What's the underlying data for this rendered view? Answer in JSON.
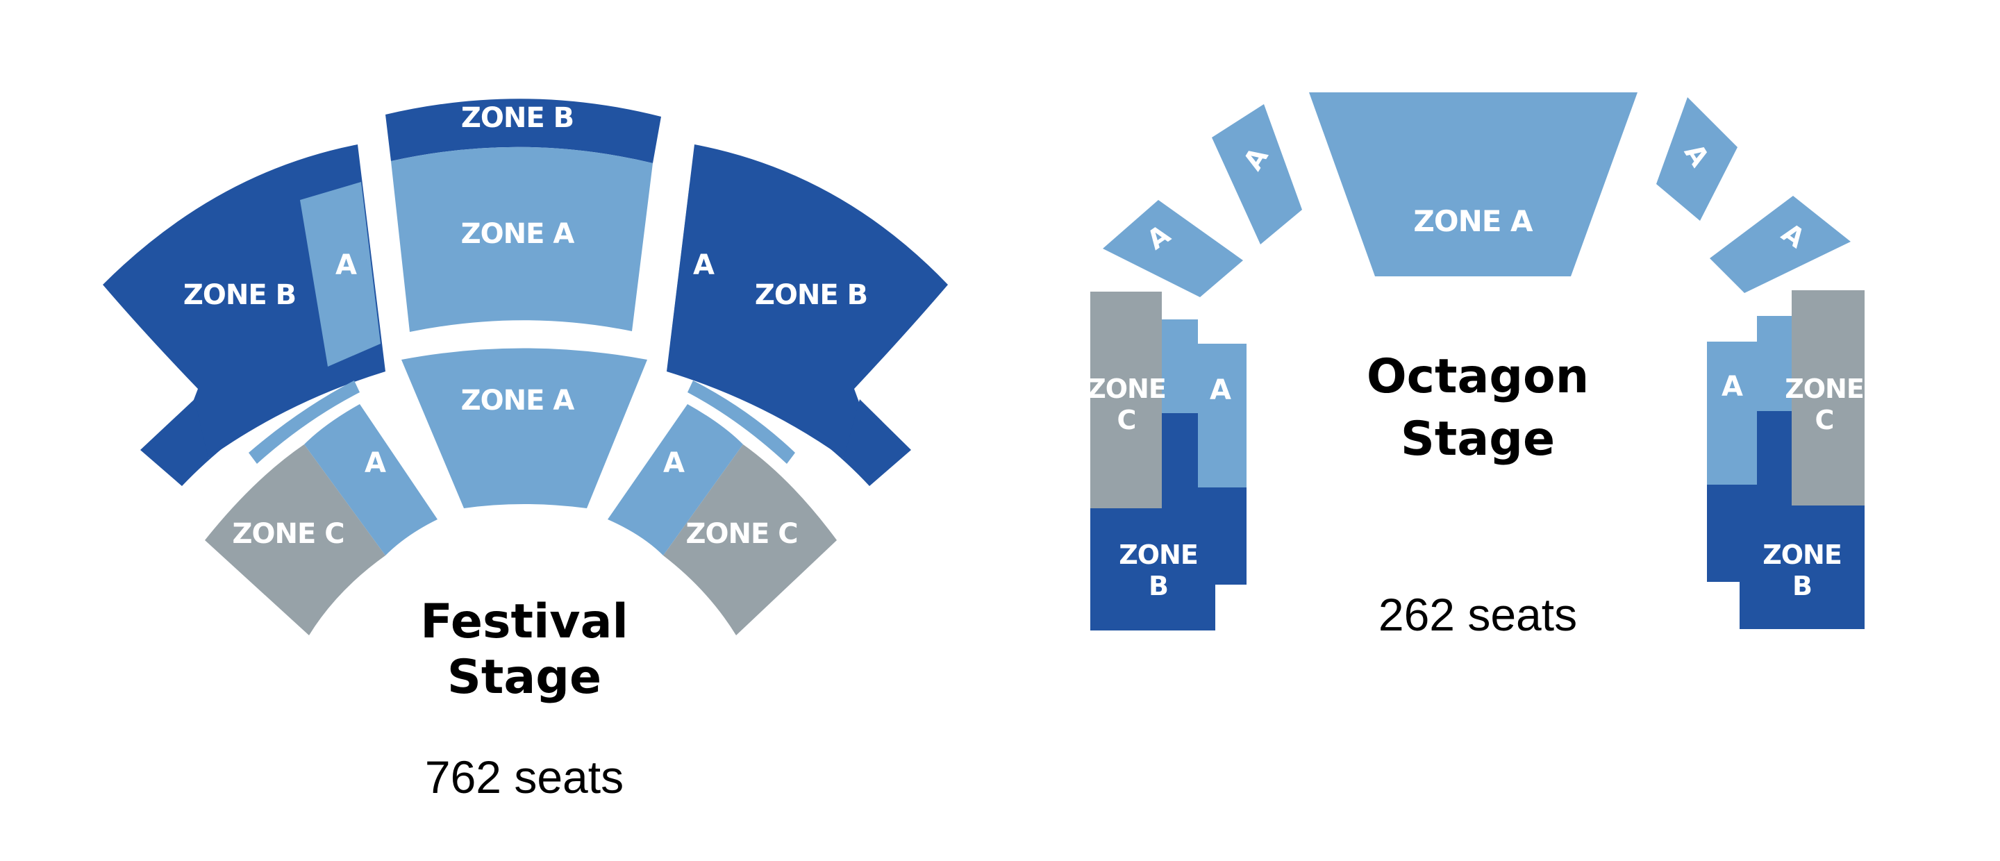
{
  "colors": {
    "zone_a": "#72a6d2",
    "zone_b": "#2153a1",
    "zone_c": "#97a2a8",
    "background": "#ffffff"
  },
  "labels": {
    "zone_a": "ZONE A",
    "zone_b": "ZONE B",
    "zone_c": "ZONE C",
    "zone_letter": "ZONE",
    "short_a": "A",
    "short_b": "B",
    "short_c": "C"
  },
  "festival": {
    "name_line1": "Festival",
    "name_line2": "Stage",
    "seats": "762 seats"
  },
  "octagon": {
    "name_line1": "Octagon",
    "name_line2": "Stage",
    "seats": "262 seats"
  }
}
